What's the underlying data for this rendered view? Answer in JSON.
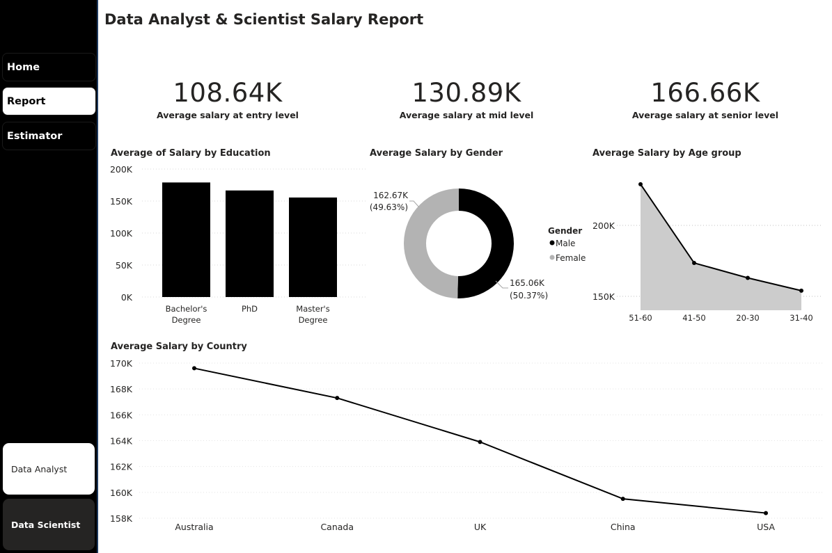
{
  "sidebar": {
    "nav": [
      {
        "label": "Home",
        "active": false
      },
      {
        "label": "Report",
        "active": true
      },
      {
        "label": "Estimator",
        "active": false
      }
    ],
    "roles": [
      {
        "label": "Data Analyst",
        "selected": false
      },
      {
        "label": "Data Scientist",
        "selected": true
      }
    ]
  },
  "header": {
    "title": "Data Analyst & Scientist Salary Report"
  },
  "kpis": [
    {
      "value": "108.64K",
      "label": "Average salary at entry level"
    },
    {
      "value": "130.89K",
      "label": "Average salary at mid level"
    },
    {
      "value": "166.66K",
      "label": "Average salary at senior level"
    }
  ],
  "colors": {
    "primary": "#000000",
    "secondary": "#b3b3b3",
    "area_fill": "#cccccc",
    "text": "#252423"
  },
  "chart_data": [
    {
      "id": "education",
      "type": "bar",
      "title": "Average of Salary by Education",
      "categories": [
        "Bachelor's Degree",
        "PhD",
        "Master's Degree"
      ],
      "category_lines": [
        [
          "Bachelor's",
          "Degree"
        ],
        [
          "PhD"
        ],
        [
          "Master's",
          "Degree"
        ]
      ],
      "values": [
        179000,
        166500,
        155500
      ],
      "ylim": [
        0,
        200000
      ],
      "yticks": [
        0,
        50000,
        100000,
        150000,
        200000
      ],
      "ytick_labels": [
        "0K",
        "50K",
        "100K",
        "150K",
        "200K"
      ],
      "grid": true
    },
    {
      "id": "gender",
      "type": "pie",
      "title": "Average Salary by Gender",
      "legend_title": "Gender",
      "legend_position": "right",
      "slices": [
        {
          "name": "Male",
          "value": 165060,
          "label": "165.06K",
          "percent": "(50.37%)",
          "color": "#000000"
        },
        {
          "name": "Female",
          "value": 162670,
          "label": "162.67K",
          "percent": "(49.63%)",
          "color": "#b3b3b3"
        }
      ]
    },
    {
      "id": "age",
      "type": "area",
      "title": "Average Salary by Age group",
      "categories": [
        "51-60",
        "41-50",
        "20-30",
        "31-40"
      ],
      "values": [
        229000,
        173500,
        163000,
        154000
      ],
      "ylim": [
        140000,
        230000
      ],
      "yticks": [
        150000,
        200000
      ],
      "ytick_labels": [
        "150K",
        "200K"
      ],
      "grid": true
    },
    {
      "id": "country",
      "type": "line",
      "title": "Average Salary by Country",
      "categories": [
        "Australia",
        "Canada",
        "UK",
        "China",
        "USA"
      ],
      "values": [
        169600,
        167300,
        163900,
        159500,
        158400
      ],
      "ylim": [
        158000,
        170000
      ],
      "yticks": [
        158000,
        160000,
        162000,
        164000,
        166000,
        168000,
        170000
      ],
      "ytick_labels": [
        "158K",
        "160K",
        "162K",
        "164K",
        "166K",
        "168K",
        "170K"
      ],
      "grid": true
    }
  ]
}
